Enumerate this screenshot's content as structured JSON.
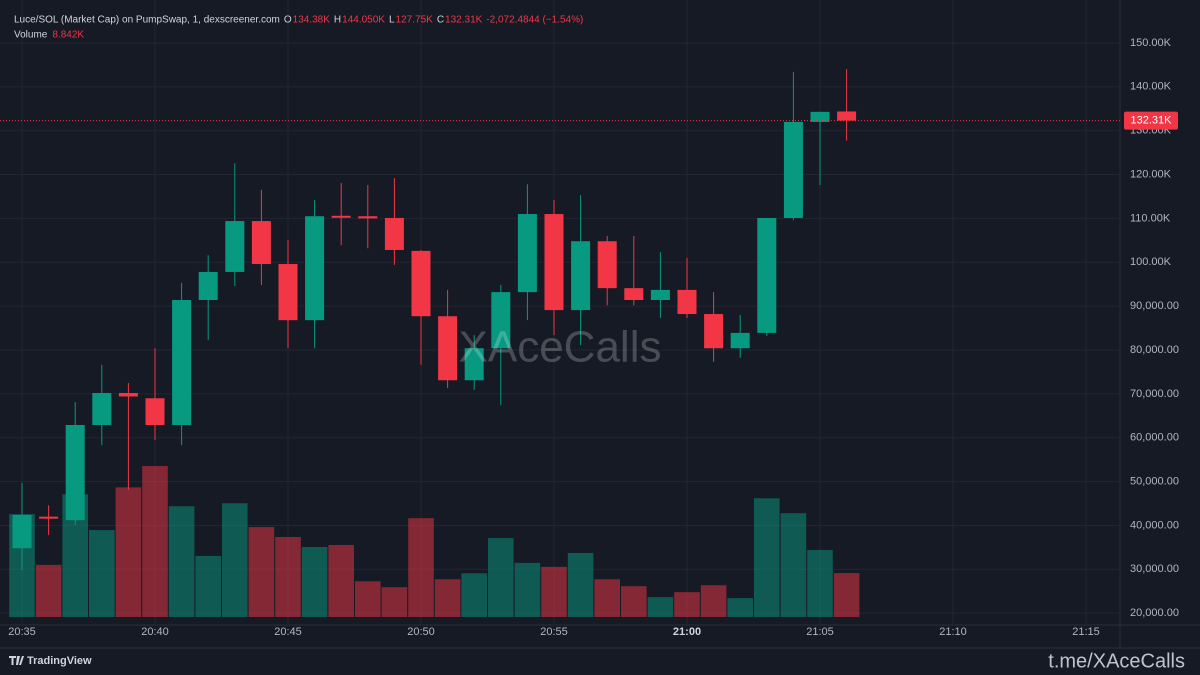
{
  "chart_data": {
    "type": "candlestick",
    "title": "Luce/SOL (Market Cap) on PumpSwap, 1, dexscreener.com",
    "ohlc_letters": [
      "O",
      "H",
      "L",
      "C"
    ],
    "ohlc_labels": [
      "134.38K",
      "144.050K",
      "127.75K",
      "132.31K"
    ],
    "change_label": "-2,072.4844 (−1.54%)",
    "volume_title": "Volume",
    "volume_label": "8.842K",
    "watermark": "XAceCalls",
    "brand": "TradingView",
    "footer_link": "t.me/XAceCalls",
    "up_color": "#089981",
    "down_color": "#f23645",
    "categories": [
      "20:35",
      null,
      null,
      null,
      null,
      "20:40",
      null,
      null,
      null,
      null,
      "20:45",
      null,
      null,
      null,
      null,
      "20:50",
      null,
      null,
      null,
      null,
      "20:55",
      null,
      null,
      null,
      null,
      "21:00",
      null,
      null,
      null,
      null,
      "21:05",
      null
    ],
    "future_xticks": [
      "21:10",
      "21:15"
    ],
    "open": [
      34800,
      42000,
      41200,
      62900,
      70200,
      69000,
      62900,
      91400,
      97800,
      109400,
      99600,
      86800,
      110600,
      110500,
      110100,
      102600,
      87700,
      73100,
      80400,
      93200,
      111000,
      89100,
      104800,
      94100,
      91400,
      93700,
      88200,
      80400,
      83900,
      110100,
      132000,
      134380
    ],
    "high": [
      49700,
      44600,
      68100,
      76600,
      72500,
      80400,
      95300,
      101600,
      122600,
      116500,
      105100,
      114200,
      118100,
      117600,
      119200,
      102800,
      93700,
      83400,
      94800,
      117800,
      114200,
      115300,
      106000,
      106000,
      102300,
      101000,
      93200,
      88000,
      110100,
      143400,
      134300,
      144050
    ],
    "low": [
      29800,
      37800,
      40100,
      58300,
      48100,
      59500,
      58300,
      82300,
      94600,
      94800,
      80400,
      80400,
      103900,
      103200,
      99400,
      76600,
      71300,
      70900,
      67400,
      86800,
      83400,
      81100,
      90200,
      90200,
      87300,
      87300,
      77300,
      78200,
      83200,
      109600,
      117600,
      127750
    ],
    "close": [
      42400,
      41600,
      62900,
      70200,
      69400,
      62900,
      91400,
      97800,
      109400,
      99600,
      86800,
      110500,
      110300,
      110000,
      102800,
      87700,
      73100,
      80400,
      93200,
      111000,
      89100,
      104800,
      94100,
      91400,
      93700,
      88200,
      80400,
      83900,
      110100,
      132000,
      134300,
      132310
    ],
    "volume": [
      20700,
      10500,
      24700,
      17500,
      26100,
      30400,
      22300,
      12300,
      22900,
      18100,
      16100,
      14100,
      14500,
      7200,
      6000,
      19900,
      7600,
      8800,
      15900,
      10900,
      10100,
      12900,
      7600,
      6200,
      4000,
      5000,
      6400,
      3800,
      23900,
      20900,
      13500,
      8842
    ],
    "ylim": [
      17300,
      159800
    ],
    "yticks": [
      {
        "value": 150000,
        "label": "150.00K"
      },
      {
        "value": 140000,
        "label": "140.00K"
      },
      {
        "value": 130000,
        "label": "130.00K"
      },
      {
        "value": 120000,
        "label": "120.00K"
      },
      {
        "value": 110000,
        "label": "110.00K"
      },
      {
        "value": 100000,
        "label": "100.00K"
      },
      {
        "value": 90000,
        "label": "90,000.00"
      },
      {
        "value": 80000,
        "label": "80,000.00"
      },
      {
        "value": 70000,
        "label": "70,000.00"
      },
      {
        "value": 60000,
        "label": "60,000.00"
      },
      {
        "value": 50000,
        "label": "50,000.00"
      },
      {
        "value": 40000,
        "label": "40,000.00"
      },
      {
        "value": 30000,
        "label": "30,000.00"
      },
      {
        "value": 20000,
        "label": "20,000.00"
      }
    ],
    "grid": true
  }
}
